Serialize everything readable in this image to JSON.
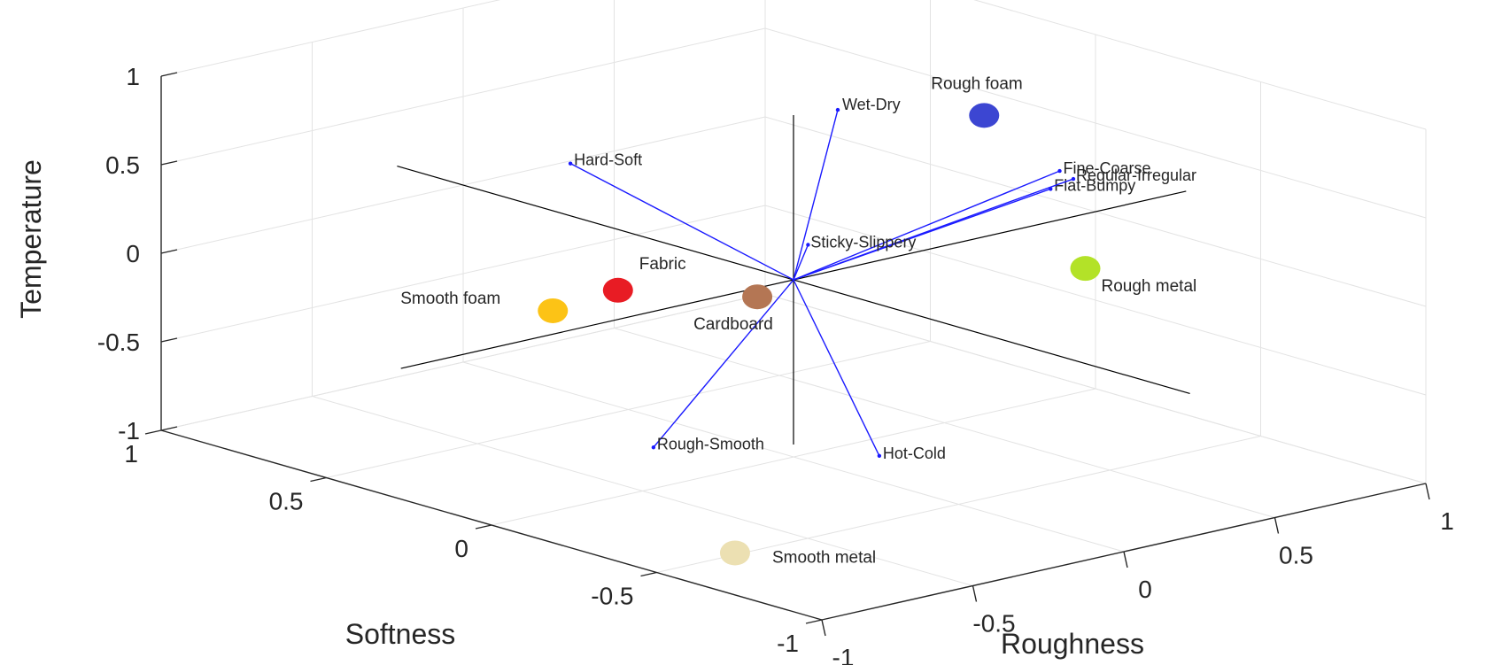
{
  "chart_data": {
    "type": "biplot-3d",
    "axes": {
      "x": {
        "label": "Roughness",
        "range": [
          -1,
          1
        ],
        "ticks": [
          "-1",
          "-0.5",
          "0",
          "0.5",
          "1"
        ]
      },
      "y": {
        "label": "Softness",
        "range": [
          -1,
          1
        ],
        "ticks": [
          "-1",
          "-0.5",
          "0",
          "0.5",
          "1"
        ]
      },
      "z": {
        "label": "Temperature",
        "range": [
          -1,
          1
        ],
        "ticks": [
          "-1",
          "-0.5",
          "0",
          "0.5",
          "1"
        ]
      }
    },
    "grid": true,
    "vectors": [
      {
        "name": "Wet-Dry",
        "x": 0.07,
        "y": -0.07,
        "z": 0.97
      },
      {
        "name": "Hard-Soft",
        "x": -0.52,
        "y": 0.2,
        "z": 0.75
      },
      {
        "name": "Fine-Coarse",
        "x": 0.75,
        "y": -0.12,
        "z": 0.39
      },
      {
        "name": "Flat-Bumpy",
        "x": 0.72,
        "y": -0.12,
        "z": 0.3
      },
      {
        "name": "Regular-Irregular",
        "x": 0.85,
        "y": -0.07,
        "z": 0.28
      },
      {
        "name": "Sticky-Slippery",
        "x": 0.07,
        "y": 0.02,
        "z": 0.16
      },
      {
        "name": "Rough-Smooth",
        "x": -0.77,
        "y": -0.28,
        "z": -0.5
      },
      {
        "name": "Hot-Cold",
        "x": 0.12,
        "y": -0.15,
        "z": -0.96
      }
    ],
    "materials": [
      {
        "name": "Rough foam",
        "x": 0.5,
        "y": -0.12,
        "z": 0.8,
        "color": "#3c46d2"
      },
      {
        "name": "Fabric",
        "x": -0.45,
        "y": 0.12,
        "z": 0.05,
        "color": "#e81c24"
      },
      {
        "name": "Smooth foam",
        "x": -0.6,
        "y": 0.18,
        "z": -0.04,
        "color": "#fcc316"
      },
      {
        "name": "Cardboard",
        "x": -0.12,
        "y": 0.0,
        "z": -0.05,
        "color": "#b47654"
      },
      {
        "name": "Rough metal",
        "x": 0.66,
        "y": -0.28,
        "z": -0.04,
        "color": "#b3e228"
      },
      {
        "name": "Smooth metal",
        "x": -0.5,
        "y": -0.28,
        "z": -1.2,
        "color": "#ece0b2"
      }
    ]
  }
}
